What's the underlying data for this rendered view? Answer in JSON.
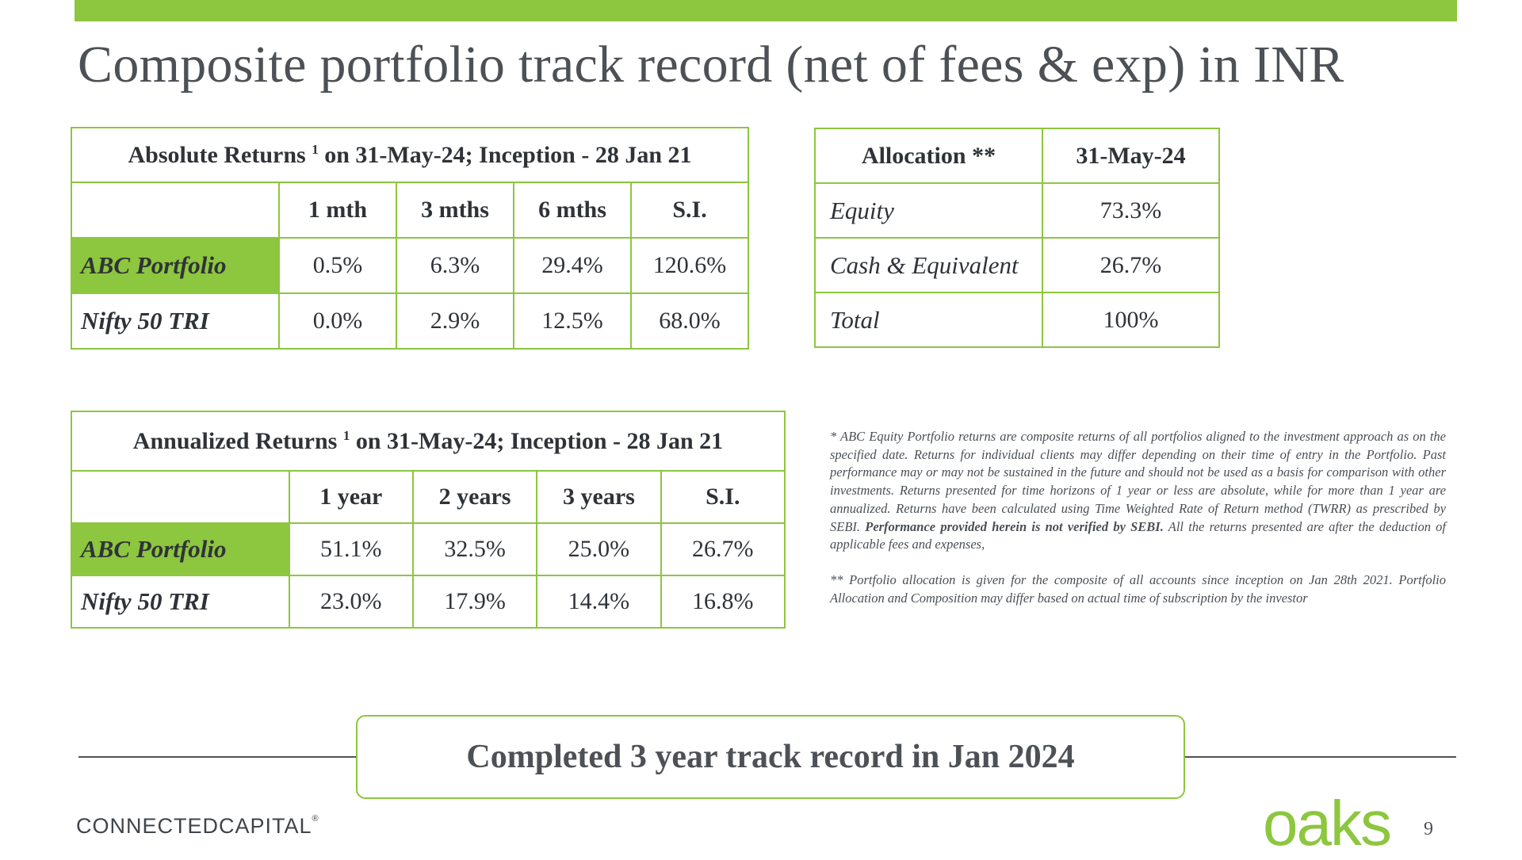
{
  "slide": {
    "title": "Composite portfolio track record (net of fees & exp) in INR",
    "accent_color": "#8dc63f",
    "page_number": "9"
  },
  "absolute_returns": {
    "header_label": "Absolute Returns",
    "footnote_ref": "1",
    "header_rest": " on 31-May-24; Inception - 28 Jan 21",
    "columns": [
      "1 mth",
      "3 mths",
      "6 mths",
      "S.I."
    ],
    "rows": [
      {
        "label": "ABC Portfolio",
        "values": [
          "0.5%",
          "6.3%",
          "29.4%",
          "120.6%"
        ]
      },
      {
        "label": "Nifty 50 TRI",
        "values": [
          "0.0%",
          "2.9%",
          "12.5%",
          "68.0%"
        ]
      }
    ]
  },
  "allocation": {
    "header": "Allocation **",
    "date": "31-May-24",
    "rows": [
      {
        "label": "Equity",
        "value": "73.3%"
      },
      {
        "label": "Cash & Equivalent",
        "value": "26.7%"
      },
      {
        "label": "Total",
        "value": "100%"
      }
    ]
  },
  "annualized_returns": {
    "header_label": "Annualized Returns",
    "footnote_ref": "1",
    "header_rest": " on 31-May-24; Inception - 28 Jan 21",
    "columns": [
      "1 year",
      "2 years",
      "3 years",
      "S.I."
    ],
    "rows": [
      {
        "label": "ABC Portfolio",
        "values": [
          "51.1%",
          "32.5%",
          "25.0%",
          "26.7%"
        ]
      },
      {
        "label": "Nifty 50 TRI",
        "values": [
          "23.0%",
          "17.9%",
          "14.4%",
          "16.8%"
        ]
      }
    ]
  },
  "notes": {
    "note1_a": "* ABC  Equity Portfolio  returns are composite returns of all portfolios aligned to the investment approach as on the specified date. Returns for individual clients may differ depending on their time of entry in the Portfolio. Past performance may or may not be sustained in the future and should not be used as a basis for comparison with other investments. Returns presented for time horizons of 1 year or less are absolute, while for more than 1 year are annualized. Returns have been calculated using Time Weighted Rate of Return method (TWRR) as prescribed by SEBI. ",
    "note1_bold": "Performance provided herein is not verified by SEBI.",
    "note1_b": " All the returns presented are after the deduction of applicable fees and expenses,",
    "note2": "** Portfolio allocation is given for the composite of all accounts since inception on Jan 28th 2021. Portfolio Allocation and Composition may differ based on actual time of subscription by the investor"
  },
  "banner": {
    "text": "Completed 3 year track record in Jan 2024"
  },
  "footer": {
    "left_logo": "CONNECTEDCAPITAL",
    "left_logo_mark": "®",
    "right_logo": "oaks"
  }
}
